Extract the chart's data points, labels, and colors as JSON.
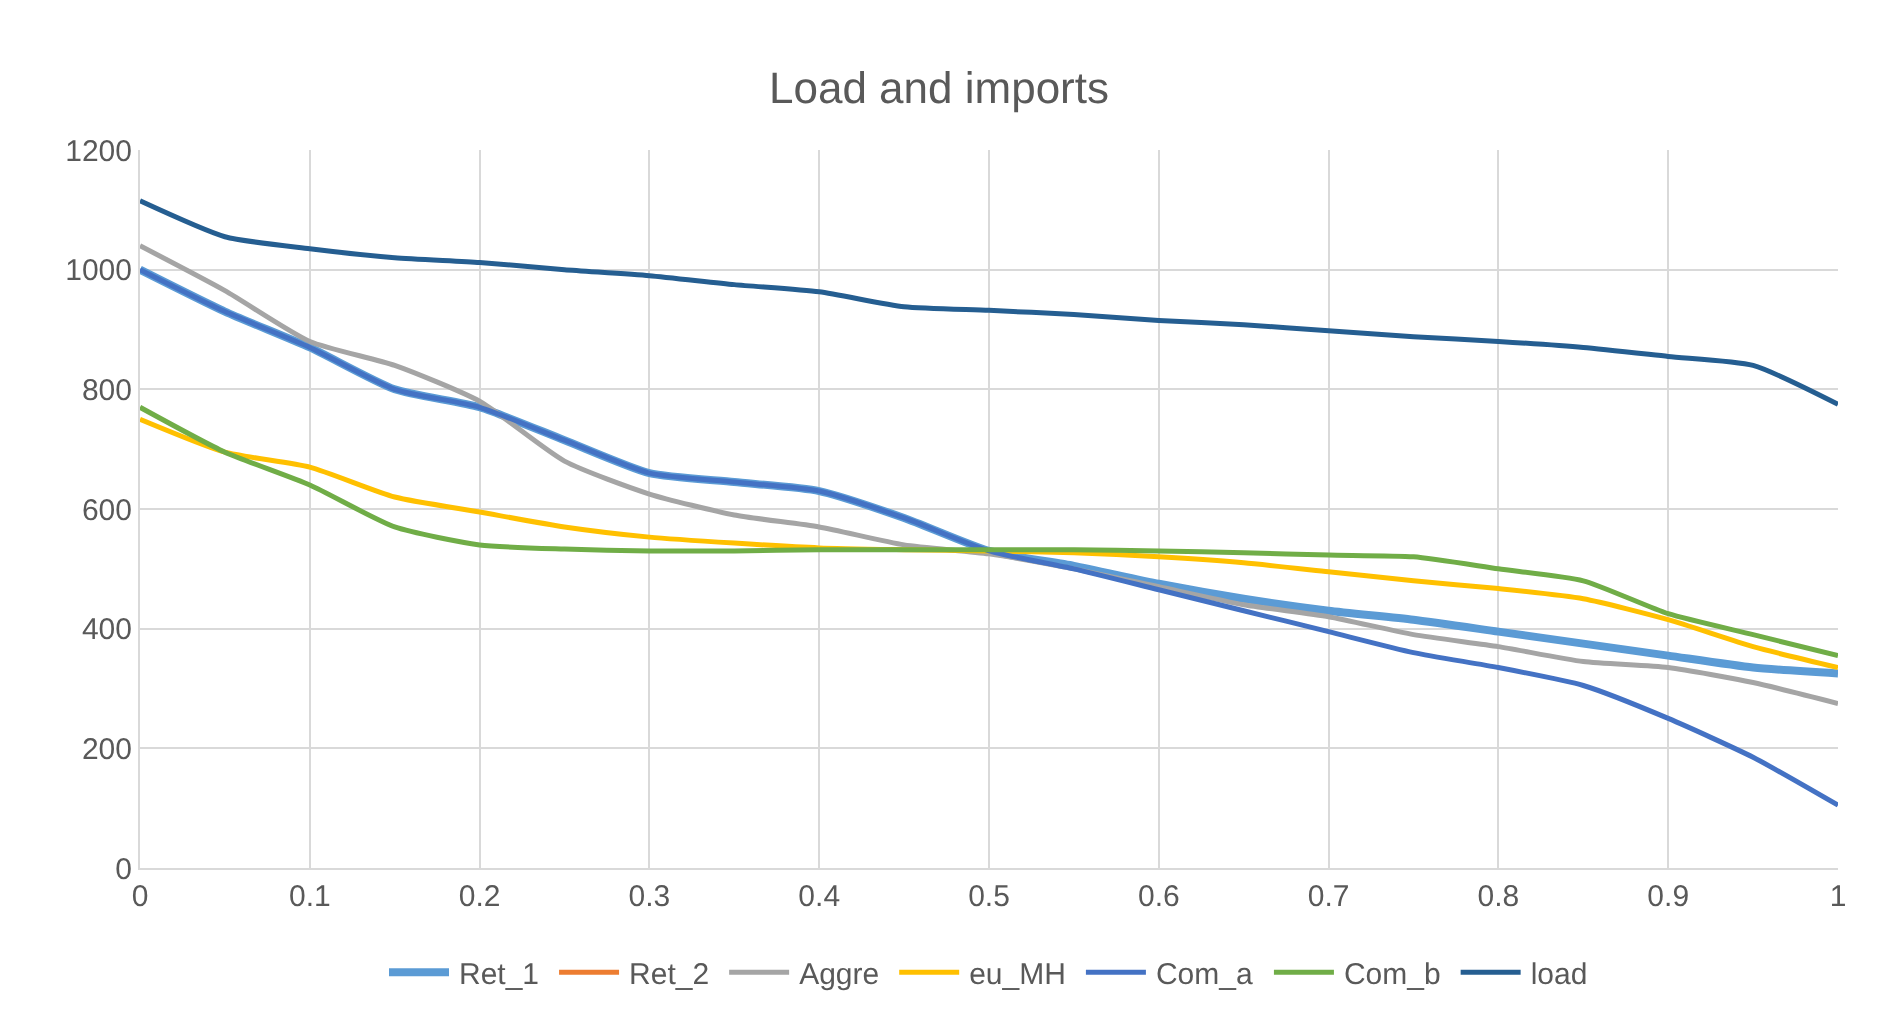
{
  "chart_data": {
    "type": "line",
    "title": "Load and imports",
    "x": [
      0,
      0.05,
      0.1,
      0.15,
      0.2,
      0.25,
      0.3,
      0.35,
      0.4,
      0.45,
      0.5,
      0.55,
      0.6,
      0.65,
      0.7,
      0.75,
      0.8,
      0.85,
      0.9,
      0.95,
      1
    ],
    "series": [
      {
        "name": "Ret_1",
        "color": "#5b9bd5",
        "values": [
          1000,
          930,
          870,
          800,
          770,
          715,
          660,
          645,
          630,
          585,
          530,
          505,
          475,
          450,
          430,
          415,
          395,
          375,
          355,
          335,
          325
        ]
      },
      {
        "name": "Ret_2",
        "color": "#ed7d31",
        "values": [
          null,
          null,
          null,
          null,
          null,
          null,
          null,
          null,
          null,
          null,
          null,
          null,
          null,
          null,
          null,
          null,
          null,
          null,
          null,
          null,
          null
        ]
      },
      {
        "name": "Aggre",
        "color": "#a5a5a5",
        "values": [
          1040,
          965,
          880,
          840,
          780,
          680,
          625,
          590,
          570,
          540,
          525,
          500,
          470,
          440,
          420,
          390,
          370,
          345,
          335,
          310,
          275
        ]
      },
      {
        "name": "eu_MH",
        "color": "#ffc000",
        "values": [
          750,
          695,
          670,
          620,
          595,
          570,
          553,
          543,
          535,
          532,
          530,
          527,
          520,
          510,
          495,
          480,
          467,
          450,
          415,
          370,
          335
        ]
      },
      {
        "name": "Com_a",
        "color": "#4472c4",
        "values": [
          1000,
          930,
          870,
          800,
          770,
          715,
          660,
          645,
          630,
          585,
          530,
          500,
          465,
          430,
          395,
          360,
          335,
          305,
          250,
          185,
          105
        ]
      },
      {
        "name": "Com_b",
        "color": "#70ad47",
        "values": [
          770,
          695,
          640,
          570,
          540,
          533,
          530,
          530,
          532,
          532,
          532,
          532,
          530,
          527,
          523,
          520,
          500,
          480,
          425,
          390,
          355
        ]
      },
      {
        "name": "load",
        "color": "#255e91",
        "values": [
          1115,
          1055,
          1035,
          1020,
          1012,
          1000,
          990,
          975,
          963,
          938,
          932,
          925,
          915,
          908,
          898,
          888,
          880,
          870,
          855,
          840,
          775
        ]
      }
    ],
    "xlim": [
      0,
      1
    ],
    "xticks": [
      0,
      0.1,
      0.2,
      0.3,
      0.4,
      0.5,
      0.6,
      0.7,
      0.8,
      0.9,
      1
    ],
    "ylim": [
      0,
      1200
    ],
    "yticks": [
      0,
      200,
      400,
      600,
      800,
      1000,
      1200
    ],
    "grid": true,
    "legend": "bottom",
    "marker": "none",
    "line_style": "solid"
  }
}
